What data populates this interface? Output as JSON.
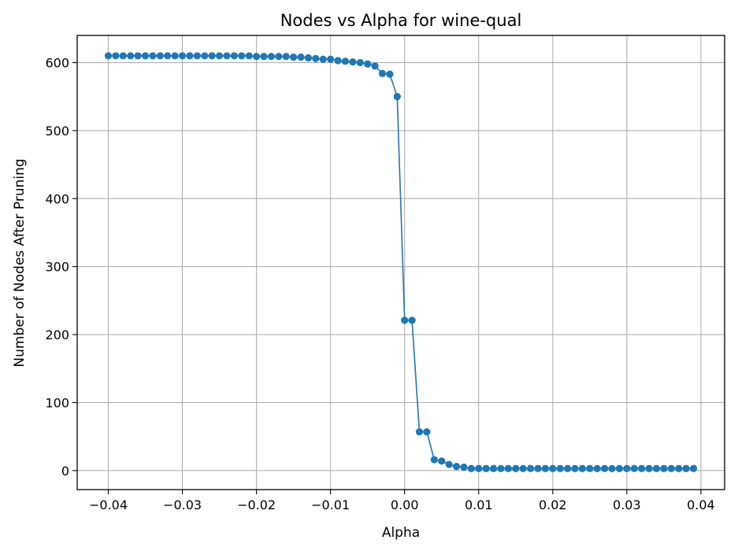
{
  "chart_data": {
    "type": "line",
    "title": "Nodes vs Alpha for wine-qual",
    "xlabel": "Alpha",
    "ylabel": "Number of Nodes After Pruning",
    "xlim": [
      -0.0442,
      0.0432
    ],
    "ylim": [
      -28,
      640
    ],
    "xticks": [
      -0.04,
      -0.03,
      -0.02,
      -0.01,
      0.0,
      0.01,
      0.02,
      0.03,
      0.04
    ],
    "xtick_labels": [
      "−0.04",
      "−0.03",
      "−0.02",
      "−0.01",
      "0.00",
      "0.01",
      "0.02",
      "0.03",
      "0.04"
    ],
    "yticks": [
      0,
      100,
      200,
      300,
      400,
      500,
      600
    ],
    "ytick_labels": [
      "0",
      "100",
      "200",
      "300",
      "400",
      "500",
      "600"
    ],
    "grid": true,
    "colors": {
      "series": "#1f77b4",
      "grid": "#b0b0b0"
    },
    "x": [
      -0.04,
      -0.039,
      -0.038,
      -0.037,
      -0.036,
      -0.035,
      -0.034,
      -0.033,
      -0.032,
      -0.031,
      -0.03,
      -0.029,
      -0.028,
      -0.027,
      -0.026,
      -0.025,
      -0.024,
      -0.023,
      -0.022,
      -0.021,
      -0.02,
      -0.019,
      -0.018,
      -0.017,
      -0.016,
      -0.015,
      -0.014,
      -0.013,
      -0.012,
      -0.011,
      -0.01,
      -0.009,
      -0.008,
      -0.007,
      -0.006,
      -0.005,
      -0.004,
      -0.003,
      -0.002,
      -0.001,
      0.0,
      0.001,
      0.002,
      0.003,
      0.004,
      0.005,
      0.006,
      0.007,
      0.008,
      0.009,
      0.01,
      0.011,
      0.012,
      0.013,
      0.014,
      0.015,
      0.016,
      0.017,
      0.018,
      0.019,
      0.02,
      0.021,
      0.022,
      0.023,
      0.024,
      0.025,
      0.026,
      0.027,
      0.028,
      0.029,
      0.03,
      0.031,
      0.032,
      0.033,
      0.034,
      0.035,
      0.036,
      0.037,
      0.038,
      0.039
    ],
    "series": [
      {
        "values": [
          610,
          610,
          610,
          610,
          610,
          610,
          610,
          610,
          610,
          610,
          610,
          610,
          610,
          610,
          610,
          610,
          610,
          610,
          610,
          610,
          609,
          609,
          609,
          609,
          609,
          608,
          608,
          607,
          606,
          605,
          605,
          603,
          602,
          601,
          600,
          598,
          595,
          584,
          583,
          550,
          221,
          221,
          57,
          57,
          16,
          14,
          9,
          6,
          5,
          3,
          3,
          3,
          3,
          3,
          3,
          3,
          3,
          3,
          3,
          3,
          3,
          3,
          3,
          3,
          3,
          3,
          3,
          3,
          3,
          3,
          3,
          3,
          3,
          3,
          3,
          3,
          3,
          3,
          3,
          3
        ]
      }
    ]
  }
}
